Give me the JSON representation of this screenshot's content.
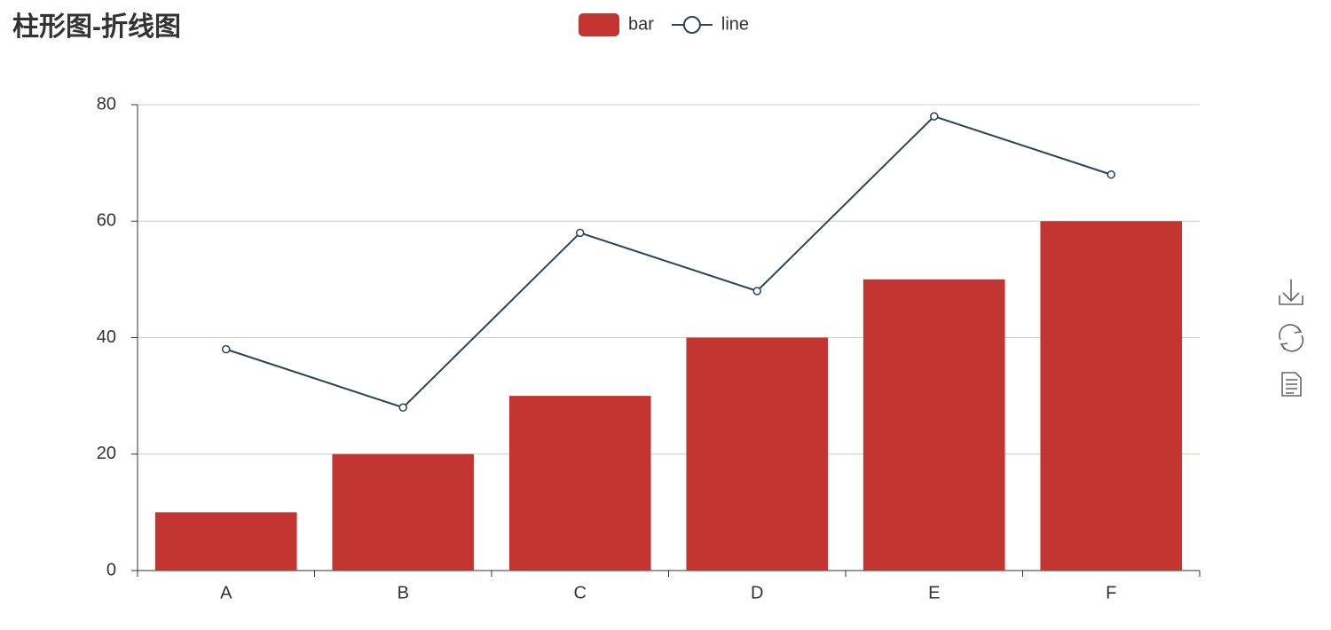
{
  "chart_data": {
    "type": "bar",
    "title": "柱形图-折线图",
    "categories": [
      "A",
      "B",
      "C",
      "D",
      "E",
      "F"
    ],
    "series": [
      {
        "name": "bar",
        "type": "bar",
        "color": "#c23531",
        "values": [
          10,
          20,
          30,
          40,
          50,
          60
        ]
      },
      {
        "name": "line",
        "type": "line",
        "color": "#2f4554",
        "values": [
          38,
          28,
          58,
          48,
          78,
          68
        ]
      }
    ],
    "ylim": [
      0,
      80
    ],
    "yticks": [
      0,
      20,
      40,
      60,
      80
    ],
    "grid": true,
    "legend": "top"
  }
}
